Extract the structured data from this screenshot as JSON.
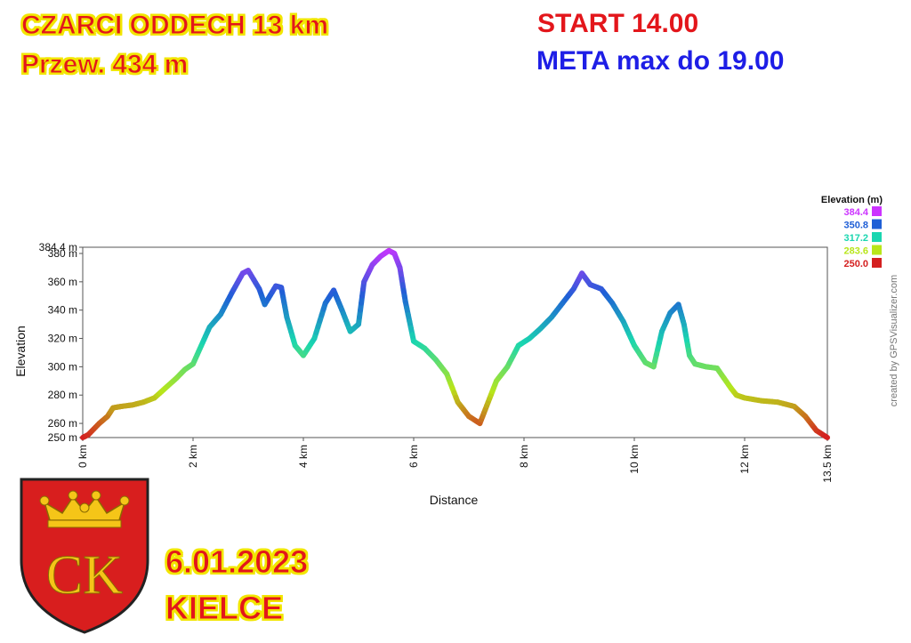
{
  "poster": {
    "title": "CZARCI ODDECH 13 km",
    "climb": "Przew. 434 m",
    "start": "START 14.00",
    "meta": "META max do 19.00",
    "date": "6.01.2023",
    "city": "KIELCE",
    "crest_letters": "CK"
  },
  "colors": {
    "title_red": "#e3161b",
    "title_outline_yellow": "#f2e600",
    "meta_blue": "#1e1ee6",
    "crest_red": "#d81e1e",
    "crest_gold": "#f5c518"
  },
  "chart_data": {
    "type": "line",
    "xlabel": "Distance",
    "ylabel": "Elevation",
    "credit": "created by GPSVisualizer.com",
    "xlim": [
      0,
      13.5
    ],
    "ylim": [
      250,
      384.4
    ],
    "x_ticks": [
      {
        "value": 0,
        "label": "0 km"
      },
      {
        "value": 2,
        "label": "2 km"
      },
      {
        "value": 4,
        "label": "4 km"
      },
      {
        "value": 6,
        "label": "6 km"
      },
      {
        "value": 8,
        "label": "8 km"
      },
      {
        "value": 10,
        "label": "10 km"
      },
      {
        "value": 12,
        "label": "12 km"
      },
      {
        "value": 13.5,
        "label": "13.5 km"
      }
    ],
    "y_ticks": [
      {
        "value": 250,
        "label": "250 m"
      },
      {
        "value": 260,
        "label": "260 m"
      },
      {
        "value": 280,
        "label": "280 m"
      },
      {
        "value": 300,
        "label": "300 m"
      },
      {
        "value": 320,
        "label": "320 m"
      },
      {
        "value": 340,
        "label": "340 m"
      },
      {
        "value": 360,
        "label": "360 m"
      },
      {
        "value": 380,
        "label": "380 m"
      },
      {
        "value": 384.4,
        "label": "384.4 m"
      }
    ],
    "grid": true,
    "legend": {
      "title": "Elevation (m)",
      "position": "top-right",
      "items": [
        {
          "label": "384.4",
          "color": "#cc33ff"
        },
        {
          "label": "350.8",
          "color": "#1f5fd6"
        },
        {
          "label": "317.2",
          "color": "#1ad6b0"
        },
        {
          "label": "283.6",
          "color": "#b8e61a"
        },
        {
          "label": "250.0",
          "color": "#d42020"
        }
      ]
    },
    "series": [
      {
        "x": [
          0,
          0.1,
          0.3,
          0.45,
          0.55,
          0.7,
          0.9,
          1.1,
          1.3,
          1.5,
          1.7,
          1.85,
          2.0,
          2.15,
          2.3,
          2.5,
          2.7,
          2.9,
          3.0,
          3.2,
          3.3,
          3.5,
          3.6,
          3.7,
          3.85,
          4.0,
          4.2,
          4.4,
          4.55,
          4.7,
          4.85,
          5.0,
          5.1,
          5.25,
          5.4,
          5.55,
          5.65,
          5.75,
          5.85,
          6.0,
          6.2,
          6.4,
          6.6,
          6.8,
          7.0,
          7.2,
          7.35,
          7.5,
          7.7,
          7.9,
          8.1,
          8.3,
          8.5,
          8.7,
          8.9,
          9.05,
          9.2,
          9.4,
          9.6,
          9.8,
          10.0,
          10.2,
          10.35,
          10.5,
          10.65,
          10.8,
          10.9,
          11.0,
          11.1,
          11.3,
          11.5,
          11.75,
          11.85,
          12.0,
          12.3,
          12.6,
          12.9,
          13.1,
          13.3,
          13.5
        ],
        "y": [
          250,
          252,
          260,
          265,
          271,
          272,
          273,
          275,
          278,
          285,
          292,
          298,
          302,
          315,
          328,
          337,
          352,
          366,
          368,
          355,
          344,
          357,
          356,
          335,
          315,
          308,
          320,
          345,
          354,
          340,
          325,
          330,
          360,
          372,
          378,
          382,
          380,
          370,
          346,
          318,
          313,
          305,
          295,
          275,
          265,
          260,
          275,
          290,
          300,
          315,
          320,
          327,
          335,
          345,
          355,
          366,
          358,
          355,
          345,
          332,
          315,
          303,
          300,
          325,
          338,
          344,
          330,
          308,
          302,
          300,
          299,
          285,
          280,
          278,
          276,
          275,
          272,
          265,
          255,
          250
        ]
      }
    ]
  }
}
